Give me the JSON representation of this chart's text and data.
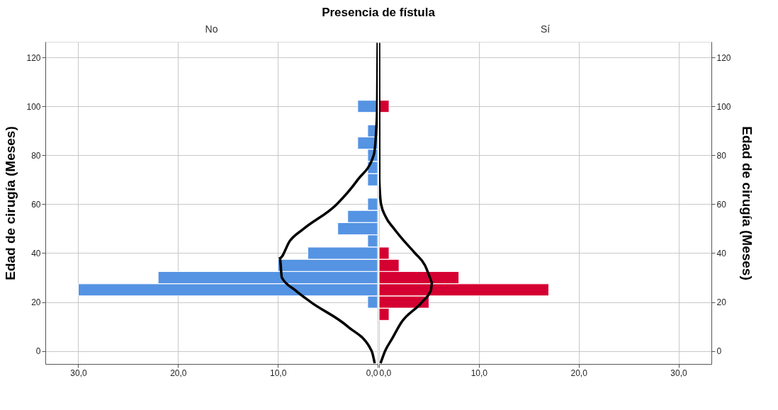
{
  "chart_data": [
    {
      "type": "bar",
      "title": "No",
      "annotations": [
        "Presencia de fístula"
      ],
      "ylabel": "Edad de cirugía (Meses)",
      "orientation": "horizontal",
      "series": [
        {
          "color": "#5593e3",
          "x": [
            20,
            25,
            30,
            35,
            40,
            45,
            50,
            55,
            60,
            70,
            75,
            80,
            85,
            90,
            100
          ],
          "values": [
            1,
            30,
            22,
            10,
            7,
            1,
            4,
            3,
            1,
            1,
            1,
            1,
            2,
            1,
            2
          ]
        },
        {
          "type": "line",
          "color": "#000000",
          "x": [
            -5,
            0,
            10,
            20,
            25,
            30,
            38,
            45,
            50,
            60,
            70,
            80,
            90,
            100,
            126
          ],
          "values": [
            0.3,
            0.6,
            3.0,
            6.7,
            8.3,
            9.6,
            9.8,
            8.8,
            7.4,
            4.1,
            2.0,
            0.4,
            0.15,
            0.05,
            0
          ]
        }
      ],
      "xlim": [
        33.3,
        0
      ],
      "ylim": [
        -5.3,
        126.4
      ],
      "xticks": [
        {
          "value": 30,
          "label": "30,0"
        },
        {
          "value": 20,
          "label": "20,0"
        },
        {
          "value": 10,
          "label": "10,0"
        },
        {
          "value": 0,
          "label": "0,0"
        }
      ],
      "yticks": [
        0,
        20,
        40,
        60,
        80,
        100,
        120
      ],
      "grid": true
    },
    {
      "type": "bar",
      "title": "Sí",
      "ylabel": "Edad de cirugía (Meses)",
      "orientation": "horizontal",
      "series": [
        {
          "color": "#d50032",
          "x": [
            15,
            20,
            25,
            30,
            35,
            40,
            100
          ],
          "values": [
            1,
            5,
            17,
            8,
            2,
            1,
            1
          ]
        },
        {
          "type": "line",
          "color": "#000000",
          "x": [
            -5,
            0,
            5,
            11.5,
            20,
            25,
            28,
            30,
            35,
            40,
            45,
            50,
            55,
            60,
            70,
            126
          ],
          "values": [
            0.15,
            0.6,
            1.3,
            2.2,
            4.3,
            5.2,
            5.3,
            5.1,
            4.6,
            3.6,
            2.5,
            1.5,
            0.65,
            0.2,
            0.02,
            0
          ]
        }
      ],
      "xlim": [
        0,
        33.3
      ],
      "ylim": [
        -5.3,
        126.4
      ],
      "xticks": [
        {
          "value": 0,
          "label": "0,0"
        },
        {
          "value": 10,
          "label": "10,0"
        },
        {
          "value": 20,
          "label": "20,0"
        },
        {
          "value": 30,
          "label": "30,0"
        }
      ],
      "yticks": [
        0,
        20,
        40,
        60,
        80,
        100,
        120
      ],
      "grid": true
    }
  ]
}
